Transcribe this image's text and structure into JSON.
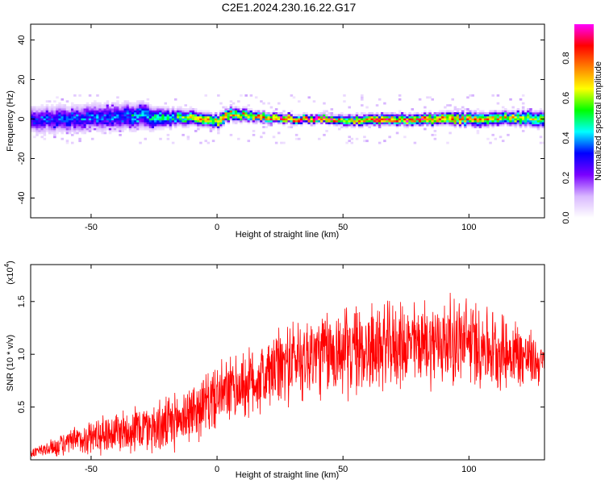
{
  "figure": {
    "title": "C2E1.2024.230.16.22.G17"
  },
  "chart_data": [
    {
      "type": "heatmap",
      "xlabel": "Height of straight line (km)",
      "ylabel": "Frequency (Hz)",
      "xlim": [
        -74,
        130
      ],
      "ylim": [
        -50,
        48
      ],
      "xticks": [
        -50,
        0,
        50,
        100
      ],
      "yticks": [
        -40,
        -20,
        0,
        20,
        40
      ],
      "colorbar": {
        "label": "Normalized spectral amplitude",
        "range": [
          0,
          0.97
        ],
        "ticks": [
          "0.0",
          "0.2",
          "0.4",
          "0.6",
          "0.8"
        ],
        "tick_values": [
          0.0,
          0.2,
          0.4,
          0.6,
          0.8
        ],
        "colormap": [
          "#ffffff",
          "#d9b8ff",
          "#7a00ff",
          "#0000ff",
          "#00ffff",
          "#00ff00",
          "#ffff00",
          "#ff8000",
          "#ff0000",
          "#ff00ff"
        ]
      },
      "ridge": {
        "description_points_x": [
          -74,
          -60,
          -45,
          -30,
          -25,
          -15,
          -5,
          0,
          5,
          15,
          30,
          45,
          50,
          60,
          80,
          100,
          115,
          130
        ],
        "center_freq_hz": [
          0,
          0,
          1,
          2,
          0,
          1,
          0,
          -1,
          3,
          1,
          0,
          0,
          -1,
          0,
          0,
          0,
          1,
          0
        ],
        "peak_amplitude": [
          0.3,
          0.35,
          0.35,
          0.4,
          0.45,
          0.55,
          0.7,
          0.75,
          0.7,
          0.75,
          0.95,
          0.95,
          0.6,
          0.8,
          0.85,
          0.75,
          0.7,
          0.6
        ],
        "spread_hz": [
          5,
          5,
          5,
          5,
          4,
          3,
          2.5,
          2.5,
          2.5,
          2,
          1.5,
          1.5,
          2,
          2,
          2,
          2.5,
          2.5,
          3
        ]
      }
    },
    {
      "type": "line",
      "xlabel": "Height of straight line (km)",
      "ylabel": "SNR (10 * v/v)",
      "multiplier_label": "(x10",
      "multiplier_exponent": "4",
      "xlim": [
        -74,
        130
      ],
      "ylim": [
        0,
        1.85
      ],
      "xticks": [
        -50,
        0,
        50,
        100
      ],
      "yticks": [
        0.5,
        1.0,
        1.5
      ],
      "ytick_labels": [
        "0.5",
        "1.0",
        "1.5"
      ],
      "series": [
        {
          "color": "#ff0000",
          "envelope_x": [
            -74,
            -60,
            -50,
            -40,
            -30,
            -20,
            -10,
            0,
            10,
            20,
            30,
            40,
            50,
            60,
            70,
            80,
            90,
            100,
            110,
            120,
            130
          ],
          "envelope_mean": [
            0.06,
            0.15,
            0.22,
            0.27,
            0.3,
            0.32,
            0.45,
            0.6,
            0.7,
            0.8,
            0.95,
            1.0,
            1.02,
            1.05,
            1.08,
            1.1,
            1.12,
            1.12,
            1.05,
            1.0,
            0.9
          ],
          "envelope_amp": [
            0.05,
            0.12,
            0.18,
            0.22,
            0.25,
            0.28,
            0.3,
            0.32,
            0.35,
            0.38,
            0.42,
            0.45,
            0.45,
            0.45,
            0.42,
            0.42,
            0.45,
            0.45,
            0.4,
            0.35,
            0.2
          ]
        }
      ]
    }
  ]
}
